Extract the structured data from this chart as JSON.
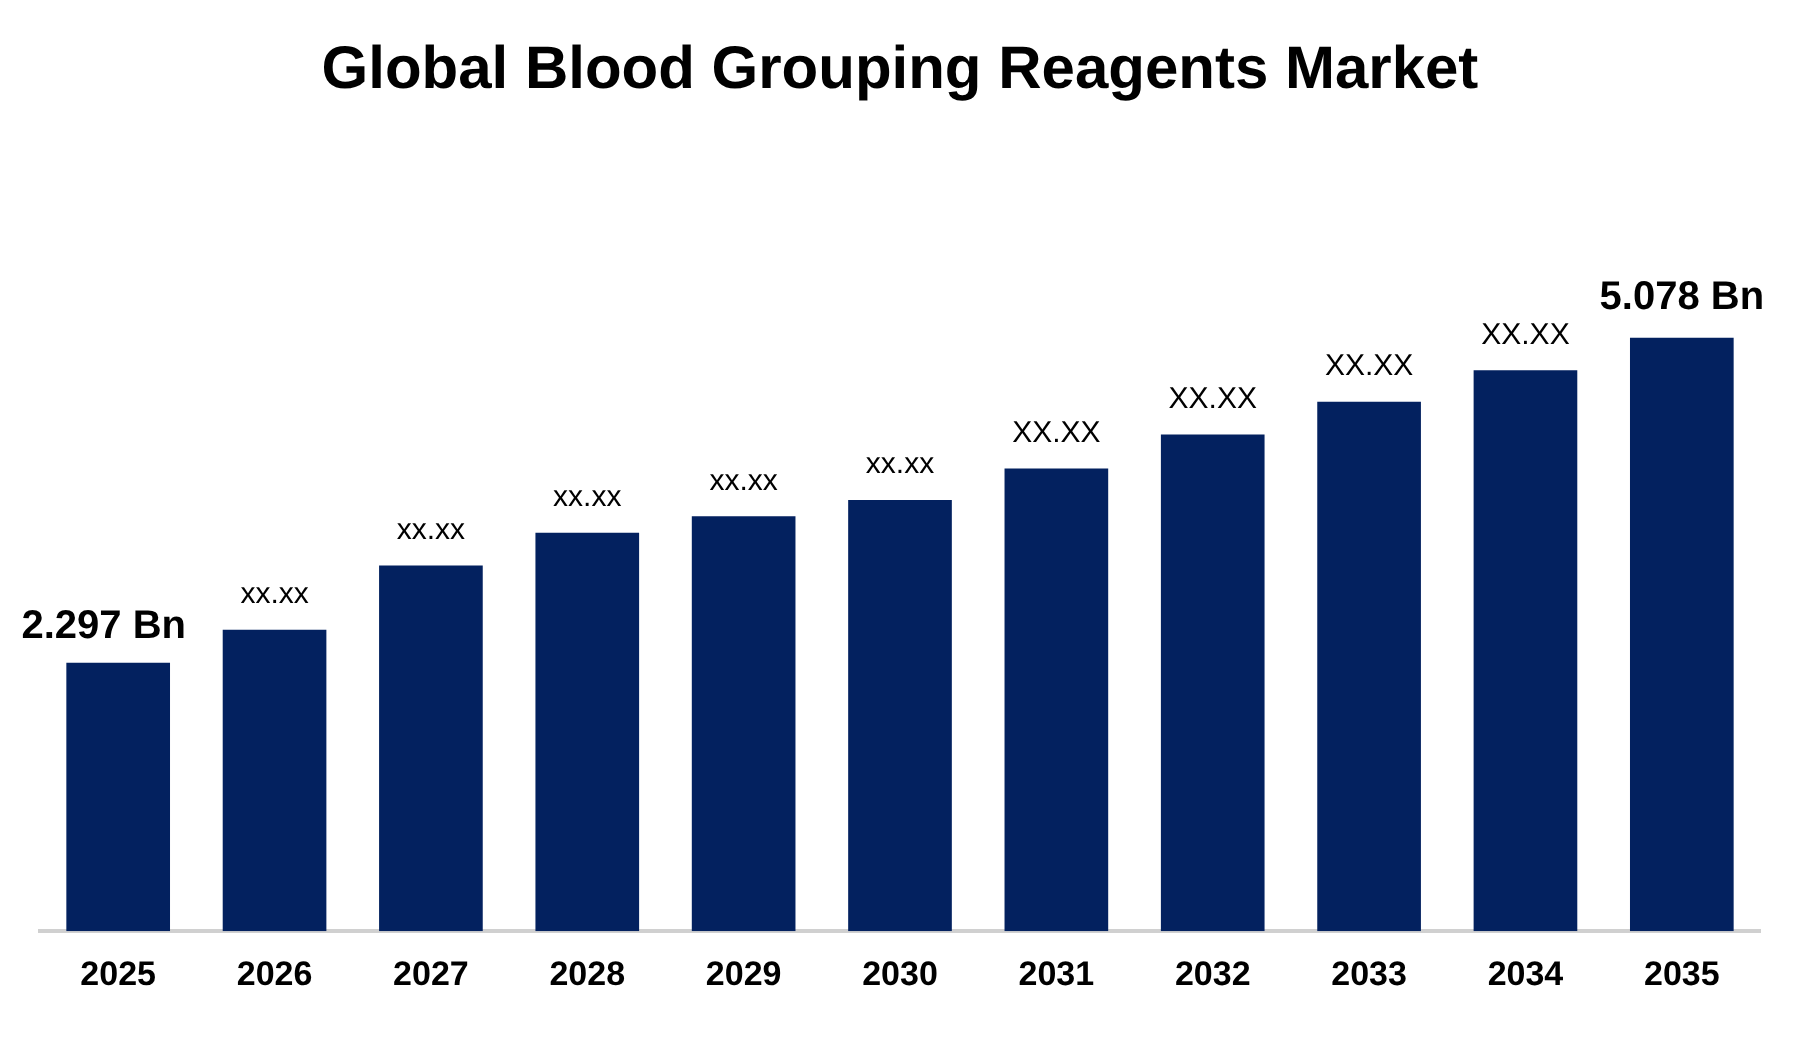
{
  "chart_data": {
    "type": "bar",
    "title": "Global Blood Grouping Reagents Market",
    "categories": [
      "2025",
      "2026",
      "2027",
      "2028",
      "2029",
      "2030",
      "2031",
      "2032",
      "2033",
      "2034",
      "2035"
    ],
    "values": [
      2.297,
      2.58,
      3.13,
      3.41,
      3.55,
      3.69,
      3.96,
      4.25,
      4.53,
      4.8,
      5.078
    ],
    "value_labels": [
      "2.297 Bn",
      "xx.xx",
      "xx.xx",
      "xx.xx",
      "xx.xx",
      "xx.xx",
      "XX.XX",
      "XX.XX",
      "XX.XX",
      "XX.XX",
      "5.078 Bn"
    ],
    "color": "#03215f",
    "grid": false,
    "legend": false
  }
}
